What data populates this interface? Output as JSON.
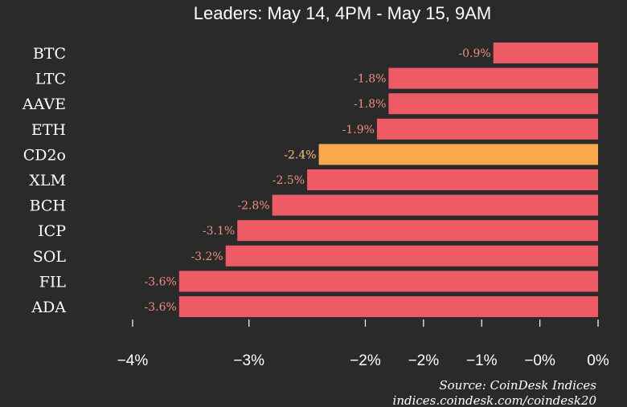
{
  "chart_data": {
    "type": "bar",
    "orientation": "horizontal",
    "title": "Leaders: May 14, 4PM - May 15, 9AM",
    "categories": [
      "BTC",
      "LTC",
      "AAVE",
      "ETH",
      "CD2o",
      "XLM",
      "BCH",
      "ICP",
      "SOL",
      "FIL",
      "ADA"
    ],
    "values": [
      -0.9,
      -1.8,
      -1.8,
      -1.9,
      -2.4,
      -2.5,
      -2.8,
      -3.1,
      -3.2,
      -3.6,
      -3.6
    ],
    "value_labels": [
      "-0.9%",
      "-1.8%",
      "-1.8%",
      "-1.9%",
      "-2.4%",
      "-2.5%",
      "-2.8%",
      "-3.1%",
      "-3.2%",
      "-3.6%",
      "-3.6%"
    ],
    "highlight_category": "CD2o",
    "xlim": [
      -4.2,
      0
    ],
    "x_ticks": [
      -4,
      -3,
      -2,
      -1.5,
      -1,
      -0.5,
      0
    ],
    "x_tick_labels": [
      "−4%",
      "−3%",
      "−2%",
      "−2%",
      "−1%",
      "−0%",
      "0%"
    ],
    "xlabel": "",
    "ylabel": "",
    "grid": false,
    "legend": "none",
    "colors": {
      "background": "#2a2a2a",
      "bar": "#ef5b64",
      "highlight_bar": "#f9a94b",
      "text": "#ffffff",
      "value_label": "#f08f7e",
      "highlight_label": "#f9c27a"
    }
  },
  "source": {
    "line1": "Source: CoinDesk Indices",
    "line2": "indices.coindesk.com/coindesk20"
  }
}
